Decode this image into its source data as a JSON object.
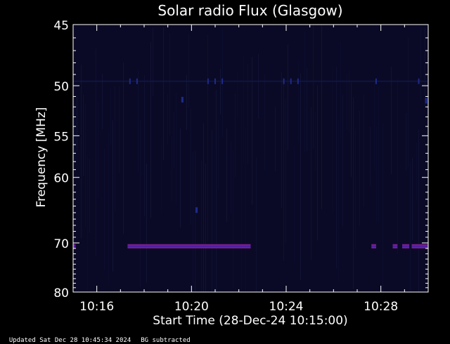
{
  "chart_data": {
    "type": "heatmap",
    "title": "Solar radio Flux (Glasgow)",
    "xlabel": "Start Time (28-Dec-24 10:15:00)",
    "ylabel": "Frequency [MHz]",
    "x_ticks": [
      "10:16",
      "10:20",
      "10:24",
      "10:28"
    ],
    "x_tick_minutes": [
      1,
      5,
      9,
      13
    ],
    "xlim_minutes": [
      0,
      15
    ],
    "y_ticks": [
      45,
      50,
      55,
      60,
      70,
      80
    ],
    "ylim": [
      45,
      80
    ],
    "y_scale": "reciprocal",
    "background_color": "#0a0a26",
    "band": {
      "frequency": 70.6,
      "color": "#7a1f8f",
      "segments_minutes": [
        [
          0.0,
          0.1
        ],
        [
          2.3,
          7.5
        ],
        [
          12.6,
          12.8
        ],
        [
          13.5,
          13.7
        ],
        [
          13.9,
          14.2
        ],
        [
          14.3,
          15.0
        ]
      ]
    },
    "faint_line": {
      "frequency": 49.6,
      "color": "#141a55",
      "dots_minutes": [
        2.4,
        2.7,
        5.7,
        6.0,
        6.3,
        8.9,
        9.2,
        9.5,
        12.8,
        14.6
      ]
    },
    "isolated_spots": [
      {
        "minute": 4.6,
        "frequency": 51.3
      },
      {
        "minute": 14.9,
        "frequency": 51.4
      },
      {
        "minute": 5.2,
        "frequency": 64.6
      }
    ]
  },
  "footer": {
    "updated": "Updated Sat Dec 28 10:45:34 2024",
    "note": "BG subtracted"
  }
}
